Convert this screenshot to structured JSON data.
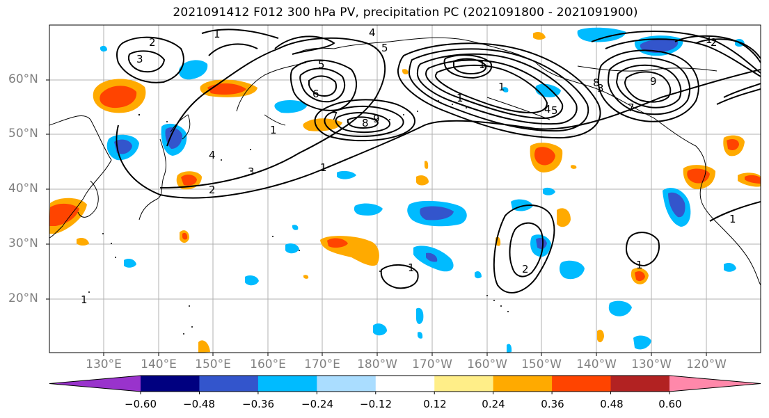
{
  "title": "2021091412 F012 300 hPa PV, precipitation PC (2021091800 - 2021091900)",
  "axes": {
    "lat_labels": [
      "60°N",
      "50°N",
      "40°N",
      "30°N",
      "20°N"
    ],
    "lon_labels": [
      "130°E",
      "140°E",
      "150°E",
      "160°E",
      "170°E",
      "180°W",
      "170°W",
      "160°W",
      "150°W",
      "140°W",
      "130°W",
      "120°W"
    ]
  },
  "colorbar": {
    "colors": [
      "#9933cc",
      "#000080",
      "#3355cc",
      "#00bbff",
      "#aaddff",
      "#ffffff",
      "#ffee88",
      "#ffaa00",
      "#ff4400",
      "#b22222",
      "#ff88aa"
    ],
    "tick_labels": [
      "−0.60",
      "−0.48",
      "−0.36",
      "−0.24",
      "−0.12",
      "0.12",
      "0.24",
      "0.36",
      "0.48",
      "0.60"
    ]
  },
  "contour_labels": [
    "1",
    "2",
    "3",
    "4",
    "5",
    "6",
    "7",
    "8",
    "9",
    "1",
    "2",
    "3",
    "1",
    "1",
    "2",
    "1",
    "4",
    "5",
    "1",
    "7",
    "8",
    "9",
    "1",
    "2",
    "1",
    "1",
    "1",
    "1",
    "3",
    "4",
    "5"
  ]
}
